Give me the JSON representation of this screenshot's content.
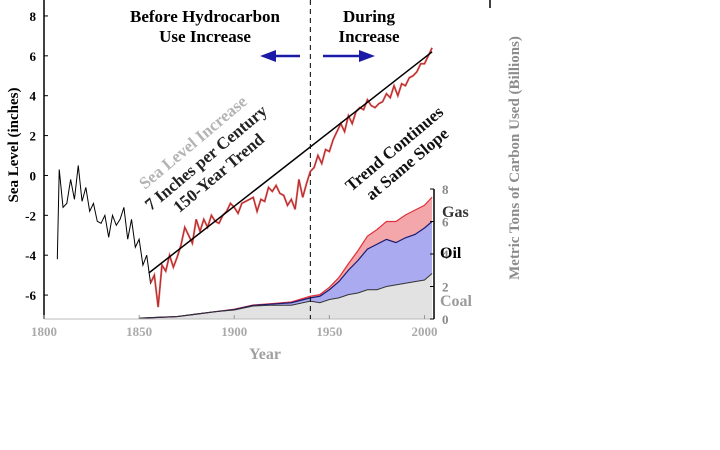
{
  "chart_data": {
    "type": "line",
    "xlabel": "Year",
    "ylabel_left": "Sea Level (inches)",
    "ylabel_right": "Metric Tons of Carbon Used (Billions)",
    "xlim": [
      1800,
      2005
    ],
    "ylim_left": [
      -7.2,
      8.8
    ],
    "ylim_right": [
      0,
      8
    ],
    "x_ticks": [
      1800,
      1850,
      1900,
      1950,
      2000
    ],
    "y_left_ticks": [
      -6,
      -4,
      -2,
      0,
      2,
      4,
      6,
      8
    ],
    "y_right_ticks": [
      0,
      2,
      4,
      6,
      8
    ],
    "divider_year": 1940,
    "annotations": {
      "before_line1": "Before Hydrocarbon",
      "before_line2": "Use Increase",
      "during_line1": "During",
      "during_line2": "Increase",
      "trend_line1": "Sea Level Increase",
      "trend_line2": "7 Inches per Century",
      "trend_line3": "150-Year Trend",
      "continues_line1": "Trend Continues",
      "continues_line2": "at Same Slope"
    },
    "fuel_labels": {
      "gas": "Gas",
      "oil": "Oil",
      "coal": "Coal"
    },
    "sea_level": {
      "name": "Sea Level",
      "x": [
        1807,
        1808,
        1810,
        1812,
        1814,
        1816,
        1818,
        1820,
        1822,
        1824,
        1826,
        1828,
        1830,
        1832,
        1834,
        1836,
        1838,
        1840,
        1842,
        1844,
        1846,
        1848,
        1850,
        1852,
        1854,
        1856,
        1858,
        1860,
        1862,
        1864,
        1866,
        1868,
        1870,
        1872,
        1874,
        1876,
        1878,
        1880,
        1882,
        1884,
        1886,
        1888,
        1890,
        1892,
        1894,
        1896,
        1898,
        1900,
        1902,
        1904,
        1906,
        1908,
        1910,
        1912,
        1914,
        1916,
        1918,
        1920,
        1922,
        1924,
        1926,
        1928,
        1930,
        1932,
        1934,
        1936,
        1938,
        1940,
        1942,
        1944,
        1946,
        1948,
        1950,
        1952,
        1954,
        1956,
        1958,
        1960,
        1962,
        1964,
        1966,
        1968,
        1970,
        1972,
        1974,
        1976,
        1978,
        1980,
        1982,
        1984,
        1986,
        1988,
        1990,
        1992,
        1994,
        1996,
        1998,
        2000,
        2002,
        2004
      ],
      "values": [
        -4.2,
        0.3,
        -1.6,
        -1.4,
        -0.2,
        -1.2,
        0.5,
        -1.3,
        -0.6,
        -1.8,
        -1.4,
        -2.3,
        -2.4,
        -2.0,
        -3.1,
        -2.0,
        -2.5,
        -2.2,
        -1.6,
        -3.2,
        -2.2,
        -3.6,
        -3.2,
        -4.5,
        -4.0,
        -5.4,
        -5.0,
        -6.6,
        -4.5,
        -4.8,
        -4.0,
        -4.6,
        -4.1,
        -3.5,
        -2.6,
        -3.0,
        -3.4,
        -2.2,
        -2.8,
        -2.2,
        -2.6,
        -2.0,
        -2.3,
        -2.4,
        -2.0,
        -1.8,
        -1.4,
        -1.6,
        -1.9,
        -1.4,
        -1.3,
        -1.2,
        -1.1,
        -1.8,
        -1.2,
        -1.3,
        -0.6,
        -0.8,
        -0.5,
        -0.9,
        -1.0,
        -1.5,
        -1.2,
        -1.7,
        -0.2,
        -1.1,
        -0.4,
        0.2,
        0.4,
        1.0,
        0.6,
        1.3,
        1.2,
        1.8,
        2.2,
        2.6,
        2.2,
        3.0,
        2.6,
        3.2,
        3.4,
        3.3,
        3.8,
        3.5,
        3.4,
        3.6,
        3.7,
        4.1,
        3.9,
        4.5,
        4.0,
        4.6,
        4.5,
        4.9,
        5.0,
        5.2,
        5.6,
        5.6,
        6.0,
        6.4
      ]
    },
    "trend_line": {
      "name": "150-Year Trend",
      "x": [
        1855,
        2004
      ],
      "values": [
        -4.9,
        6.2
      ]
    },
    "carbon": {
      "x": [
        1850,
        1860,
        1870,
        1880,
        1890,
        1900,
        1910,
        1920,
        1930,
        1940,
        1945,
        1950,
        1955,
        1960,
        1965,
        1970,
        1975,
        1980,
        1985,
        1990,
        1995,
        2000,
        2004
      ],
      "coal": [
        0.05,
        0.1,
        0.15,
        0.3,
        0.45,
        0.55,
        0.8,
        0.85,
        0.85,
        1.1,
        1.0,
        1.2,
        1.3,
        1.5,
        1.6,
        1.8,
        1.8,
        2.0,
        2.1,
        2.2,
        2.3,
        2.4,
        2.8
      ],
      "oil": [
        0.05,
        0.1,
        0.15,
        0.3,
        0.45,
        0.58,
        0.84,
        0.92,
        1.0,
        1.3,
        1.4,
        1.8,
        2.3,
        3.0,
        3.6,
        4.3,
        4.6,
        4.9,
        4.7,
        5.0,
        5.2,
        5.6,
        6.0
      ],
      "gas": [
        0.05,
        0.1,
        0.15,
        0.3,
        0.45,
        0.6,
        0.86,
        0.95,
        1.05,
        1.4,
        1.5,
        1.95,
        2.55,
        3.4,
        4.2,
        5.1,
        5.5,
        6.0,
        6.0,
        6.4,
        6.7,
        7.0,
        7.5
      ]
    },
    "grid": false,
    "legend": "none"
  }
}
